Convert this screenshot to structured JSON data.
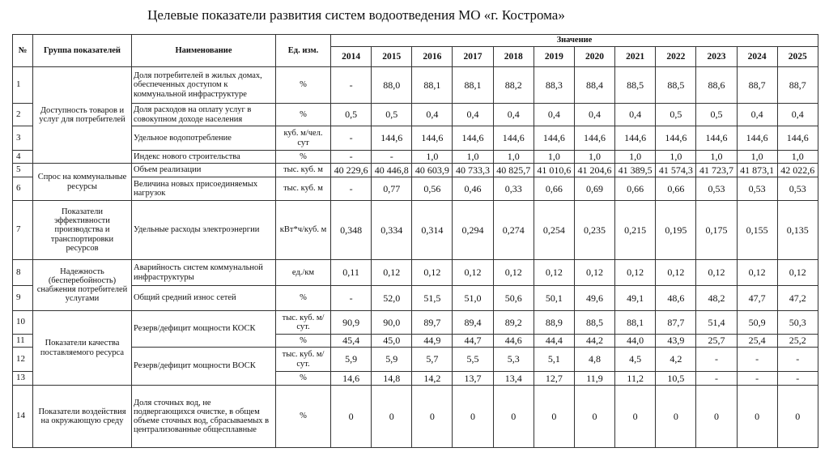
{
  "title": "Целевые показатели развития систем водоотведения МО «г. Кострома»",
  "header": {
    "num": "№",
    "group": "Группа показателей",
    "name": "Наименование",
    "unit": "Ед. изм.",
    "value": "Значение",
    "years": [
      "2014",
      "2015",
      "2016",
      "2017",
      "2018",
      "2019",
      "2020",
      "2021",
      "2022",
      "2023",
      "2024",
      "2025"
    ]
  },
  "rows": [
    {
      "num": "1",
      "group": "Доступность товаров и услуг для потребителей",
      "name": "Доля потребителей в жилых домах, обеспеченных доступом к коммунальной инфраструктуре",
      "unit": "%",
      "values": [
        "-",
        "88,0",
        "88,1",
        "88,1",
        "88,2",
        "88,3",
        "88,4",
        "88,5",
        "88,5",
        "88,6",
        "88,7",
        "88,7"
      ]
    },
    {
      "num": "2",
      "name": "Доля расходов на оплату услуг в совокупном доходе населения",
      "unit": "%",
      "values": [
        "0,5",
        "0,5",
        "0,4",
        "0,4",
        "0,4",
        "0,4",
        "0,4",
        "0,4",
        "0,5",
        "0,5",
        "0,4",
        "0,4"
      ]
    },
    {
      "num": "3",
      "name": "Удельное водопотребление",
      "unit": "куб. м/чел. сут",
      "values": [
        "-",
        "144,6",
        "144,6",
        "144,6",
        "144,6",
        "144,6",
        "144,6",
        "144,6",
        "144,6",
        "144,6",
        "144,6",
        "144,6"
      ]
    },
    {
      "num": "4",
      "name": "Индекс нового строительства",
      "unit": "%",
      "values": [
        "-",
        "-",
        "1,0",
        "1,0",
        "1,0",
        "1,0",
        "1,0",
        "1,0",
        "1,0",
        "1,0",
        "1,0",
        "1,0"
      ]
    },
    {
      "num": "5",
      "group": "Спрос на коммунальные ресурсы",
      "name": "Объем реализации",
      "unit": "тыс. куб. м",
      "values": [
        "40 229,6",
        "40 446,8",
        "40 603,9",
        "40 733,3",
        "40 825,7",
        "41 010,6",
        "41 204,6",
        "41 389,5",
        "41 574,3",
        "41 723,7",
        "41 873,1",
        "42 022,6"
      ]
    },
    {
      "num": "6",
      "name": "Величина новых присоединяемых нагрузок",
      "unit": "тыс. куб. м",
      "values": [
        "-",
        "0,77",
        "0,56",
        "0,46",
        "0,33",
        "0,66",
        "0,69",
        "0,66",
        "0,66",
        "0,53",
        "0,53",
        "0,53"
      ]
    },
    {
      "num": "7",
      "group": "Показатели эффективности производства и транспортировки ресурсов",
      "name": "Удельные расходы электроэнергии",
      "unit": "кВт*ч/куб. м",
      "values": [
        "0,348",
        "0,334",
        "0,314",
        "0,294",
        "0,274",
        "0,254",
        "0,235",
        "0,215",
        "0,195",
        "0,175",
        "0,155",
        "0,135"
      ]
    },
    {
      "num": "8",
      "group": "Надежность (бесперебойность) снабжения потребителей услугами",
      "name": "Аварийность систем коммунальной инфраструктуры",
      "unit": "ед./км",
      "values": [
        "0,11",
        "0,12",
        "0,12",
        "0,12",
        "0,12",
        "0,12",
        "0,12",
        "0,12",
        "0,12",
        "0,12",
        "0,12",
        "0,12"
      ]
    },
    {
      "num": "9",
      "name": "Общий средний износ сетей",
      "unit": "%",
      "values": [
        "-",
        "52,0",
        "51,5",
        "51,0",
        "50,6",
        "50,1",
        "49,6",
        "49,1",
        "48,6",
        "48,2",
        "47,7",
        "47,2"
      ]
    },
    {
      "num": "10",
      "group": "Показатели качества поставляемого ресурса",
      "name": "Резерв/дефицит мощности КОСК",
      "unit": "тыс. куб. м/сут.",
      "values": [
        "90,9",
        "90,0",
        "89,7",
        "89,4",
        "89,2",
        "88,9",
        "88,5",
        "88,1",
        "87,7",
        "51,4",
        "50,9",
        "50,3"
      ]
    },
    {
      "num": "11",
      "unit": "%",
      "values": [
        "45,4",
        "45,0",
        "44,9",
        "44,7",
        "44,6",
        "44,4",
        "44,2",
        "44,0",
        "43,9",
        "25,7",
        "25,4",
        "25,2"
      ]
    },
    {
      "num": "12",
      "name": "Резерв/дефицит мощности ВОСК",
      "unit": "тыс. куб. м/сут.",
      "values": [
        "5,9",
        "5,9",
        "5,7",
        "5,5",
        "5,3",
        "5,1",
        "4,8",
        "4,5",
        "4,2",
        "-",
        "-",
        "-"
      ]
    },
    {
      "num": "13",
      "unit": "%",
      "values": [
        "14,6",
        "14,8",
        "14,2",
        "13,7",
        "13,4",
        "12,7",
        "11,9",
        "11,2",
        "10,5",
        "-",
        "-",
        "-"
      ]
    },
    {
      "num": "14",
      "group": "Показатели воздействия на окружающую среду",
      "name": "Доля сточных вод, не подвергающихся очистке, в общем объеме сточных вод, сбрасываемых в централизованные общесплавные",
      "unit": "%",
      "values": [
        "0",
        "0",
        "0",
        "0",
        "0",
        "0",
        "0",
        "0",
        "0",
        "0",
        "0",
        "0"
      ]
    }
  ]
}
